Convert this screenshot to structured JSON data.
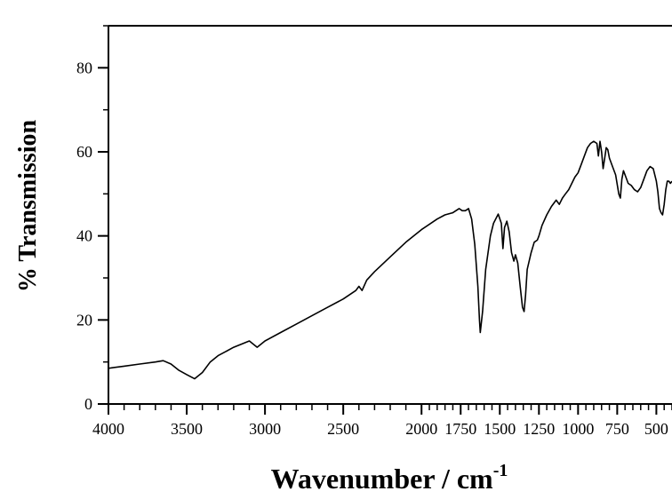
{
  "chart_data": {
    "type": "line",
    "title": "",
    "xlabel": "Wavenumber / cm",
    "xlabel_superscript": "-1",
    "ylabel": "% Transmission",
    "x_reversed": true,
    "xlim": [
      4000,
      400
    ],
    "ylim": [
      0,
      90
    ],
    "x_ticks": [
      4000,
      3500,
      3000,
      2500,
      2000,
      1750,
      1500,
      1250,
      1000,
      750,
      500
    ],
    "x_tick_labels": [
      "4000",
      "3500",
      "3000",
      "2500",
      "2000",
      "1750",
      "1500",
      "1250",
      "1000",
      "750",
      "500"
    ],
    "y_ticks": [
      0,
      20,
      40,
      60,
      80
    ],
    "y_tick_labels": [
      "0",
      "20",
      "40",
      "60",
      "80"
    ],
    "grid": false,
    "series": [
      {
        "color": "#000000",
        "x": [
          4000,
          3900,
          3800,
          3700,
          3650,
          3600,
          3550,
          3500,
          3450,
          3400,
          3350,
          3300,
          3200,
          3100,
          3050,
          3000,
          2900,
          2800,
          2700,
          2600,
          2500,
          2420,
          2400,
          2380,
          2350,
          2300,
          2200,
          2100,
          2000,
          1900,
          1850,
          1800,
          1760,
          1740,
          1720,
          1700,
          1680,
          1660,
          1640,
          1630,
          1625,
          1610,
          1590,
          1560,
          1540,
          1510,
          1490,
          1480,
          1470,
          1455,
          1440,
          1425,
          1410,
          1400,
          1385,
          1370,
          1355,
          1345,
          1335,
          1325,
          1300,
          1280,
          1260,
          1250,
          1230,
          1200,
          1170,
          1140,
          1120,
          1100,
          1080,
          1060,
          1040,
          1020,
          1000,
          980,
          960,
          940,
          920,
          900,
          880,
          870,
          860,
          850,
          840,
          830,
          820,
          810,
          800,
          780,
          760,
          740,
          730,
          720,
          710,
          700,
          680,
          660,
          640,
          620,
          600,
          580,
          560,
          540,
          520,
          500,
          490,
          480,
          470,
          460,
          450,
          440,
          430,
          420,
          410,
          400
        ],
        "y": [
          8.5,
          9.0,
          9.5,
          10.0,
          10.3,
          9.5,
          8.0,
          7.0,
          6.0,
          7.5,
          10.0,
          11.5,
          13.5,
          15.0,
          13.5,
          15.0,
          17.0,
          19.0,
          21.0,
          23.0,
          25.0,
          27.0,
          28.0,
          27.0,
          29.5,
          31.5,
          35.0,
          38.5,
          41.5,
          44.0,
          45.0,
          45.5,
          46.5,
          46.0,
          46.0,
          46.5,
          44.0,
          38.0,
          28.0,
          20.0,
          17.0,
          22.0,
          32.0,
          40.0,
          43.0,
          45.2,
          43.0,
          37.0,
          42.0,
          43.5,
          41.0,
          36.0,
          34.0,
          35.5,
          33.5,
          28.0,
          23.0,
          22.0,
          26.0,
          32.0,
          36.0,
          38.5,
          39.0,
          40.0,
          42.5,
          45.0,
          47.0,
          48.5,
          47.5,
          49.0,
          50.0,
          51.0,
          52.5,
          54.0,
          55.0,
          57.0,
          59.0,
          61.0,
          62.0,
          62.5,
          62.0,
          59.0,
          62.5,
          60.0,
          56.0,
          58.5,
          61.0,
          60.5,
          58.5,
          56.5,
          54.5,
          50.0,
          49.0,
          53.5,
          55.5,
          54.5,
          52.5,
          52.0,
          51.0,
          50.5,
          51.5,
          53.5,
          55.5,
          56.5,
          56.0,
          53.0,
          50.5,
          46.5,
          45.5,
          45.0,
          47.5,
          51.0,
          53.0,
          53.0,
          52.5,
          53.0
        ]
      }
    ]
  }
}
